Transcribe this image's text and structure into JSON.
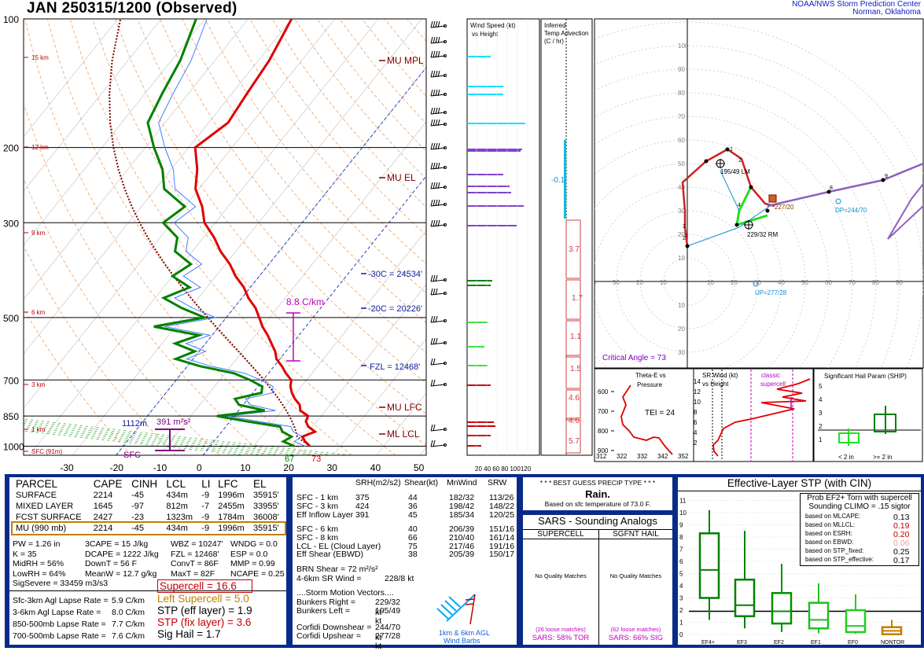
{
  "header": {
    "title": "JAN   250315/1200  (Observed)",
    "credit_line1": "NOAA/NWS Storm Prediction Center",
    "credit_line2": "Norman, Oklahoma"
  },
  "skewt": {
    "pressure_labels": [
      "100",
      "200",
      "300",
      "500",
      "700",
      "850",
      "1000"
    ],
    "temp_labels": [
      "-30",
      "-20",
      "-10",
      "0",
      "10",
      "20",
      "30",
      "40",
      "50"
    ],
    "height_labels": [
      "15 km",
      "12 km",
      "9 km",
      "6 km",
      "3 km",
      "1 km",
      "SFC (91m)"
    ],
    "annotations": {
      "mu_mpl": "MU  MPL",
      "mu_el": "MU  EL",
      "mu_lfc": "MU  LFC",
      "ml_lcl": "ML  LCL",
      "m30c": "-30C = 24534'",
      "m20c": "-20C = 20226'",
      "fzl": "FZL = 12468'",
      "lapse": "8.8 C/km",
      "srh_depth": "1112m",
      "srh_value": "391 m²s²",
      "sfc_label": "SFC",
      "td_sfc": "67",
      "t_sfc": "73"
    }
  },
  "wind_panel": {
    "title_line1": "Wind Speed (kt)",
    "title_line2": "vs Height",
    "axis": "20 40 60 80 100120"
  },
  "temp_adv": {
    "title_line1": "Inferred",
    "title_line2": "Temp Advection",
    "title_line3": "(C / hr)",
    "values": [
      "-0.1",
      "3.7",
      "1.7",
      "1.1",
      "1.5",
      "4.6",
      "4.6",
      "5.7"
    ]
  },
  "hodograph": {
    "ring_labels": [
      "10",
      "20",
      "30",
      "40",
      "50",
      "60",
      "70",
      "80",
      "90",
      "100"
    ],
    "bunkers_left": "195/49 LM",
    "bunkers_right": "229/32 RM",
    "mean_wind": "227/20",
    "downshear": "DP=244/70",
    "upshear": "UP=277/28",
    "critical_angle": "Critical Angle = 73",
    "points": [
      "1",
      "2",
      "4",
      "8",
      "9",
      "3",
      "2"
    ]
  },
  "theta_panel": {
    "title_line1": "Theta-E vs",
    "title_line2": "Pressure",
    "tei": "TEI = 24",
    "x_labels": [
      "312",
      "322",
      "332",
      "342",
      "352"
    ],
    "y_labels": [
      "600",
      "700",
      "800",
      "900"
    ]
  },
  "sr_panel": {
    "title_line1": "SR Wind (kt)",
    "title_line2": "vs Height",
    "classic": "classic",
    "supercell": "supercell",
    "y_labels": [
      "14",
      "12",
      "10",
      "8",
      "6",
      "4",
      "2"
    ]
  },
  "ship_panel": {
    "title": "Significant Hail Param (SHIP)",
    "y_labels": [
      "5",
      "4",
      "3",
      "2",
      "1"
    ],
    "lt2": "< 2 in",
    "ge2": ">= 2 in"
  },
  "parcel_table": {
    "headers": [
      "PARCEL",
      "CAPE",
      "CINH",
      "LCL",
      "LI",
      "LFC",
      "EL"
    ],
    "rows": [
      [
        "SURFACE",
        "2214",
        "-45",
        "434m",
        "-9",
        "1996m",
        "35915'"
      ],
      [
        "MIXED LAYER",
        "1645",
        "-97",
        "812m",
        "-7",
        "2455m",
        "33955'"
      ],
      [
        "FCST SURFACE",
        "2427",
        "-23",
        "1323m",
        "-9",
        "1784m",
        "36008'"
      ],
      [
        "MU   (990 mb)",
        "2214",
        "-45",
        "434m",
        "-9",
        "1996m",
        "35915'"
      ]
    ]
  },
  "thermo_indices": {
    "col1": [
      "PW = 1.26 in",
      "K = 35",
      "MidRH = 56%",
      "LowRH = 64%",
      "SigSevere = 33459 m3/s3"
    ],
    "col2": [
      "3CAPE = 15 J/kg",
      "DCAPE = 1222 J/kg",
      "DownT = 56 F",
      "MeanW = 12.7 g/kg"
    ],
    "col3": [
      "WBZ = 10247'",
      "FZL = 12468'",
      "ConvT = 86F",
      "MaxT = 82F"
    ],
    "col4": [
      "WNDG = 0.0",
      "ESP = 0.0",
      "MMP = 0.99",
      "NCAPE = 0.25"
    ]
  },
  "lapse_rates": [
    {
      "label": "Sfc-3km Agl Lapse Rate =",
      "value": "5.9 C/km"
    },
    {
      "label": "3-6km Agl Lapse Rate =",
      "value": "8.0 C/km"
    },
    {
      "label": "850-500mb Lapse Rate =",
      "value": "7.7 C/km"
    },
    {
      "label": "700-500mb Lapse Rate =",
      "value": "7.6 C/km"
    }
  ],
  "composite": [
    {
      "text": "Supercell = 16.6",
      "color": "#c00000"
    },
    {
      "text": "Left Supercell = 5.0",
      "color": "#c08000"
    },
    {
      "text": "STP (eff layer) = 1.9",
      "color": "#000000"
    },
    {
      "text": "STP (fix layer) = 3.6",
      "color": "#c00000"
    },
    {
      "text": "Sig Hail = 1.7",
      "color": "#000000"
    }
  ],
  "kinematics": {
    "headers": [
      "SRH(m2/s2)",
      "Shear(kt)",
      "MnWind",
      "SRW"
    ],
    "group1": [
      [
        "SFC - 1 km",
        "375",
        "44",
        "182/32",
        "113/26"
      ],
      [
        "SFC - 3 km",
        "424",
        "36",
        "198/42",
        "148/22"
      ],
      [
        "Eff Inflow Layer",
        "391",
        "45",
        "185/34",
        "120/25"
      ]
    ],
    "group2": [
      [
        "SFC - 6 km",
        "",
        "40",
        "206/39",
        "151/16"
      ],
      [
        "SFC - 8 km",
        "",
        "66",
        "210/40",
        "161/14"
      ],
      [
        "LCL - EL (Cloud Layer)",
        "",
        "75",
        "217/46",
        "191/16"
      ],
      [
        "Eff Shear (EBWD)",
        "",
        "38",
        "205/39",
        "150/17"
      ]
    ],
    "brn_shear": "BRN Shear =  72 m²/s²",
    "srw_46": "4-6km SR Wind =",
    "srw_46_val": "228/8 kt",
    "storm_motion_title": "....Storm Motion Vectors....",
    "motions": [
      [
        "Bunkers Right =",
        "229/32 kt"
      ],
      [
        "Bunkers Left =",
        "195/49 kt"
      ],
      [
        "Corfidi Downshear =",
        "244/70 kt"
      ],
      [
        "Corfidi Upshear =",
        "277/28 kt"
      ]
    ],
    "barb_caption1": "1km & 6km AGL",
    "barb_caption2": "Wind Barbs"
  },
  "precip": {
    "title": "* * * BEST GUESS PRECIP TYPE * * *",
    "type": "Rain.",
    "basis": "Based on sfc temperature of 73.0 F."
  },
  "sars": {
    "title": "SARS - Sounding Analogs",
    "col1_title": "SUPERCELL",
    "col2_title": "SGFNT HAIL",
    "col1_result": "No Quality Matches",
    "col2_result": "No Quality Matches",
    "col1_loose": "(26 loose matches)",
    "col2_loose": "(62 loose matches)",
    "col1_pct": "SARS:  58% TOR",
    "col2_pct": "SARS:  66% SIG"
  },
  "stp_box": {
    "title": "Effective-Layer STP (with CIN)",
    "prob_line1": "Prob EF2+ Torn with supercell",
    "prob_line2": "Sounding CLIMO = .15 sigtor",
    "rows": [
      {
        "label": "based on MLCAPE:",
        "value": "0.13",
        "color": "#000000"
      },
      {
        "label": "based on MLLCL:",
        "value": "0.19",
        "color": "#c00000"
      },
      {
        "label": "based on ESRH:",
        "value": "0.20",
        "color": "#c00000"
      },
      {
        "label": "based on EBWD:",
        "value": "0.06",
        "color": "#e0a0a0"
      },
      {
        "label": "based on STP_fixed:",
        "value": "0.25",
        "color": "#000000"
      },
      {
        "label": "based on STP_effective:",
        "value": "0.17",
        "color": "#000000"
      }
    ],
    "y_labels": [
      "11",
      "10",
      "9",
      "8",
      "7",
      "6",
      "5",
      "4",
      "3",
      "2",
      "1",
      "0"
    ],
    "x_labels": [
      "EF4+",
      "EF3",
      "EF2",
      "EF1",
      "EF0",
      "NONTOR"
    ]
  },
  "colors": {
    "temp": "#e00000",
    "dewpoint": "#008000",
    "wetbulb": "#4080ff",
    "parcel": "#800000",
    "panel_border": "#0a2a8a",
    "hodo_line": "#d02020",
    "hodo_upper": "#9060c0"
  }
}
